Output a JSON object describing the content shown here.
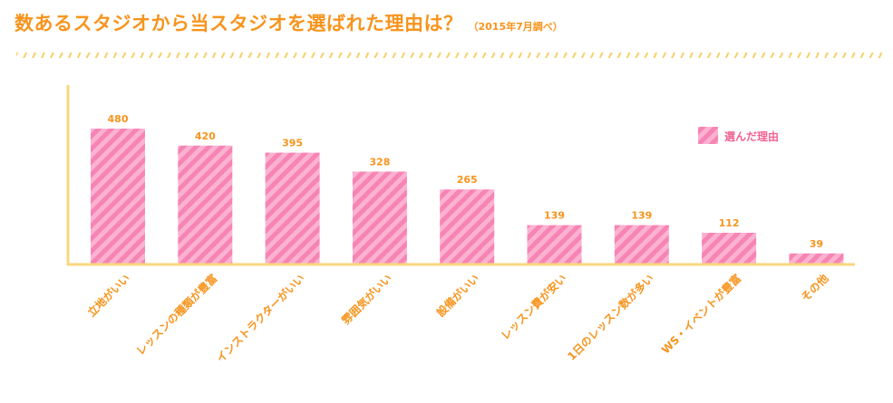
{
  "header": {
    "title": "数あるスタジオから当スタジオを選ばれた理由は？",
    "subtitle": "（2015年7月調べ）"
  },
  "chart_data": {
    "type": "bar",
    "title": "数あるスタジオから当スタジオを選ばれた理由は？",
    "subtitle": "（2015年7月調べ）",
    "categories": [
      "立地がいい",
      "レッスンの種類が豊富",
      "インストラクターがいい",
      "雰囲気がいい",
      "設備がいい",
      "レッスン費が安い",
      "1日のレッスン数が多い",
      "WS・イベントが豊富",
      "その他"
    ],
    "series": [
      {
        "name": "選んだ理由",
        "values": [
          480,
          420,
          395,
          328,
          265,
          139,
          139,
          112,
          39
        ]
      }
    ],
    "xlabel": "",
    "ylabel": "",
    "ylim": [
      0,
      550
    ],
    "grid": false,
    "legend_position": "top-right",
    "colors": {
      "bar": "#f684b4",
      "stripe": "#fbb2d0",
      "axis": "#f9d77e",
      "text": "#f7941d",
      "legend_text": "#f06292"
    }
  }
}
